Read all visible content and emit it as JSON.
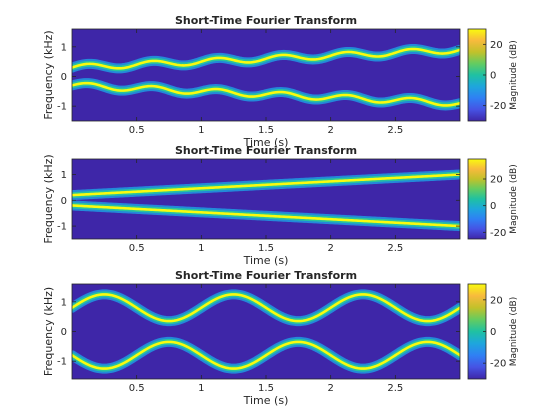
{
  "colors": {
    "background": "#3e26a8",
    "ridge_core": "#f9fb0e",
    "ridge_mid": "#27c2a0",
    "ridge_edge": "#1e9be2",
    "axis": "#262626"
  },
  "colormap": [
    "#3e26a8",
    "#4653e4",
    "#2f80f4",
    "#1ea6dd",
    "#1fc1a2",
    "#64cc60",
    "#c2c12a",
    "#f8ba3d",
    "#f9fb0e"
  ],
  "chart_data": [
    {
      "type": "heatmap",
      "title": "Short-Time Fourier Transform",
      "xlabel": "Time (s)",
      "ylabel": "Frequency (kHz)",
      "xlim": [
        0,
        3
      ],
      "ylim": [
        -1.5,
        1.6
      ],
      "xticks": [
        "0.5",
        "1",
        "1.5",
        "2",
        "2.5"
      ],
      "yticks": [
        "-1",
        "0",
        "1"
      ],
      "colorbar": {
        "label": "Magnitude (dB)",
        "range": [
          -30,
          30
        ],
        "ticks": [
          "20",
          "0",
          "-20"
        ]
      },
      "ridges": [
        {
          "shape": "sine",
          "center_start": 0.3,
          "center_end": 0.9,
          "amplitude": 0.1,
          "cycles_per_second": 2
        },
        {
          "shape": "sine",
          "center_start": -0.3,
          "center_end": -0.9,
          "amplitude": 0.1,
          "cycles_per_second": 2
        }
      ]
    },
    {
      "type": "heatmap",
      "title": "Short-Time Fourier Transform",
      "xlabel": "Time (s)",
      "ylabel": "Frequency (kHz)",
      "xlim": [
        0,
        3
      ],
      "ylim": [
        -1.5,
        1.6
      ],
      "xticks": [
        "0.5",
        "1",
        "1.5",
        "2",
        "2.5"
      ],
      "yticks": [
        "-1",
        "0",
        "1"
      ],
      "colorbar": {
        "label": "Magnitude (dB)",
        "range": [
          -25,
          35
        ],
        "ticks": [
          "20",
          "0",
          "-20"
        ]
      },
      "ridges": [
        {
          "shape": "chirp",
          "f_start": 0.2,
          "f_end": 1.0
        },
        {
          "shape": "chirp",
          "f_start": -0.2,
          "f_end": -1.0
        }
      ]
    },
    {
      "type": "heatmap",
      "title": "Short-Time Fourier Transform",
      "xlabel": "Time (s)",
      "ylabel": "Frequency (kHz)",
      "xlim": [
        0,
        3
      ],
      "ylim": [
        -1.6,
        1.6
      ],
      "xticks": [
        "0.5",
        "1",
        "1.5",
        "2",
        "2.5"
      ],
      "yticks": [
        "-1",
        "0",
        "1"
      ],
      "colorbar": {
        "label": "Magnitude (dB)",
        "range": [
          -30,
          30
        ],
        "ticks": [
          "20",
          "0",
          "-20"
        ]
      },
      "ridges": [
        {
          "shape": "sine",
          "center_start": 0.8,
          "center_end": 0.8,
          "amplitude": 0.45,
          "cycles_per_second": 1,
          "phase": 0
        },
        {
          "shape": "sine",
          "center_start": -0.8,
          "center_end": -0.8,
          "amplitude": 0.45,
          "cycles_per_second": 1,
          "phase": 3.14159
        }
      ]
    }
  ]
}
